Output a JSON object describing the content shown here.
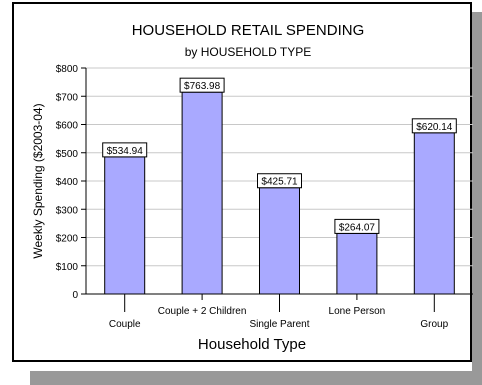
{
  "chart_data": {
    "type": "bar",
    "title": "HOUSEHOLD RETAIL SPENDING",
    "subtitle": "by HOUSEHOLD TYPE",
    "xlabel": "Household Type",
    "ylabel": "Weekly Spending ($2003-04)",
    "categories": [
      "Couple",
      "Couple + 2 Children",
      "Single Parent",
      "Lone Person",
      "Group"
    ],
    "values": [
      534.94,
      763.98,
      425.71,
      264.07,
      620.14
    ],
    "data_labels": [
      "$534.94",
      "$763.98",
      "$425.71",
      "$264.07",
      "$620.14"
    ],
    "ylim": [
      0,
      800
    ],
    "yticks": [
      0,
      100,
      200,
      300,
      400,
      500,
      600,
      700,
      800
    ],
    "ytick_labels": [
      "0",
      "$100",
      "$200",
      "$300",
      "$400",
      "$500",
      "$600",
      "$700",
      "$800"
    ],
    "grid": true,
    "colors": {
      "bar": "#a9a9ff",
      "bar_edge": "#000000",
      "grid": "#c8c8c8"
    }
  }
}
